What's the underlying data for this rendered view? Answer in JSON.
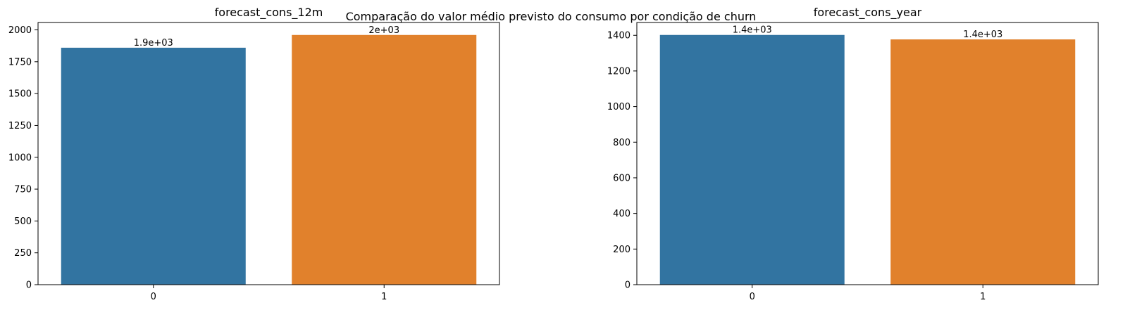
{
  "figure": {
    "suptitle": "Comparação do valor médio previsto do consumo por condição de churn"
  },
  "colors": {
    "series_0": "#3274a1",
    "series_1": "#e1812c",
    "axis": "#000000",
    "background": "#ffffff"
  },
  "chart_data": [
    {
      "type": "bar",
      "title": "forecast_cons_12m",
      "xlabel": "",
      "ylabel": "",
      "categories": [
        "0",
        "1"
      ],
      "values": [
        1860,
        1960
      ],
      "bar_labels": [
        "1.9e+03",
        "2e+03"
      ],
      "ylim": [
        0,
        2058
      ],
      "yticks": [
        0,
        250,
        500,
        750,
        1000,
        1250,
        1500,
        1750,
        2000
      ],
      "ytick_labels": [
        "0",
        "250",
        "500",
        "750",
        "1000",
        "1250",
        "1500",
        "1750",
        "2000"
      ],
      "grid": false,
      "legend": "none"
    },
    {
      "type": "bar",
      "title": "forecast_cons_year",
      "xlabel": "",
      "ylabel": "",
      "categories": [
        "0",
        "1"
      ],
      "values": [
        1402,
        1377
      ],
      "bar_labels": [
        "1.4e+03",
        "1.4e+03"
      ],
      "ylim": [
        0,
        1472
      ],
      "yticks": [
        0,
        200,
        400,
        600,
        800,
        1000,
        1200,
        1400
      ],
      "ytick_labels": [
        "0",
        "200",
        "400",
        "600",
        "800",
        "1000",
        "1200",
        "1400"
      ],
      "grid": false,
      "legend": "none"
    }
  ]
}
